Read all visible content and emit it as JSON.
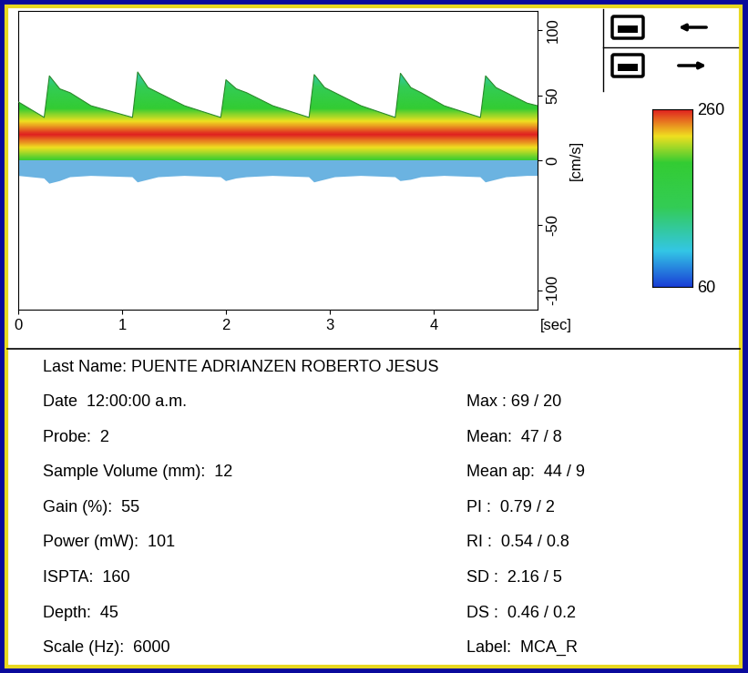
{
  "chart_data": {
    "type": "area",
    "x": [
      0,
      0.25,
      0.3,
      0.4,
      0.5,
      0.7,
      1.1,
      1.15,
      1.25,
      1.35,
      1.6,
      1.95,
      2.0,
      2.1,
      2.2,
      2.45,
      2.8,
      2.85,
      2.95,
      3.05,
      3.3,
      3.63,
      3.68,
      3.78,
      3.88,
      4.1,
      4.45,
      4.5,
      4.6,
      4.7,
      4.9,
      5.0
    ],
    "values": [
      45,
      33,
      65,
      55,
      52,
      42,
      33,
      68,
      56,
      52,
      42,
      33,
      62,
      55,
      52,
      42,
      33,
      66,
      56,
      52,
      42,
      33,
      67,
      56,
      52,
      42,
      33,
      65,
      56,
      52,
      44,
      42
    ],
    "negative_values": [
      -12,
      -14,
      -18,
      -16,
      -13,
      -12,
      -13,
      -17,
      -15,
      -13,
      -12,
      -13,
      -16,
      -14,
      -13,
      -12,
      -13,
      -17,
      -15,
      -13,
      -12,
      -13,
      -16,
      -15,
      -13,
      -12,
      -13,
      -17,
      -15,
      -13,
      -12,
      -12
    ],
    "xlim": [
      0,
      5
    ],
    "xticks": [
      0,
      1,
      2,
      3,
      4
    ],
    "xlabel": "[sec]",
    "ylim": [
      -115,
      115
    ],
    "yticks": [
      -100,
      -50,
      0,
      50,
      100
    ],
    "ylabel": "[cm/s]",
    "colorbar": {
      "range": [
        60,
        260
      ],
      "ticks": [
        60,
        260
      ]
    }
  },
  "info_panel": {
    "left": [
      "Last Name: PUENTE ADRIANZEN ROBERTO JESUS",
      "Date  12:00:00 a.m.",
      "Probe:  2",
      "Sample Volume (mm):  12",
      "Gain (%):  55",
      "Power (mW):  101",
      "ISPTA:  160",
      "Depth:  45",
      "Scale (Hz):  6000"
    ],
    "right": [
      "Max : 69 / 20",
      "Mean:  47 / 8",
      "Mean ap:  44 / 9",
      "PI :  0.79 / 2",
      "RI :  0.54 / 0.8",
      "SD :  2.16 / 5",
      "DS :  0.46 / 0.2",
      "Label:  MCA_R"
    ]
  }
}
